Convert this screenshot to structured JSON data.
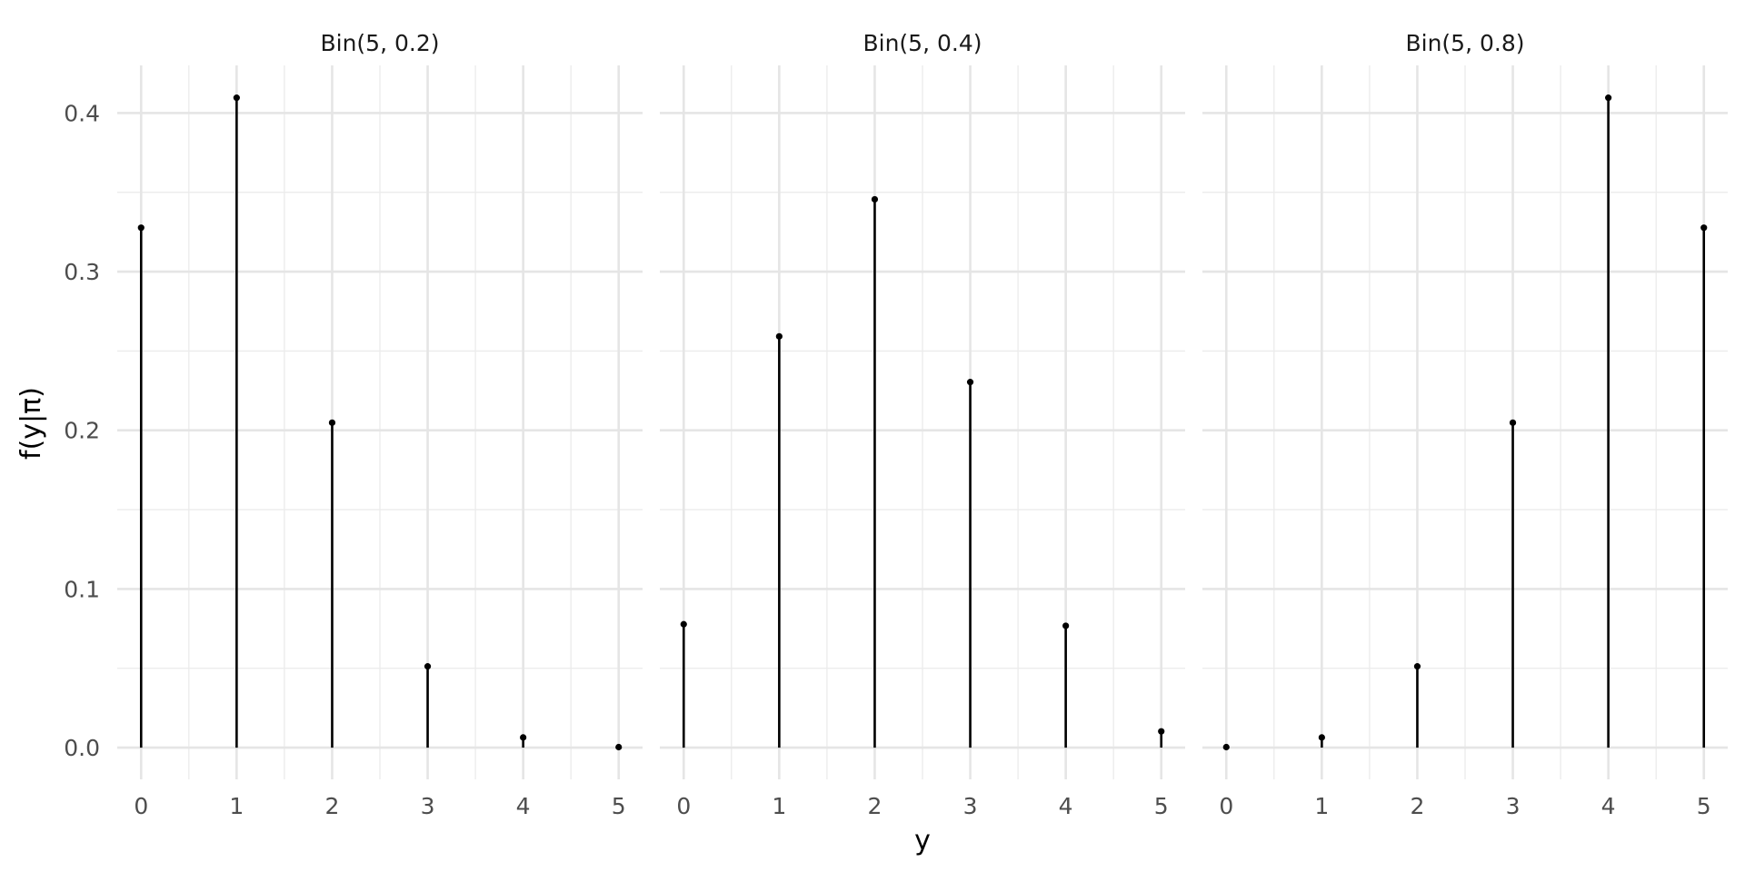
{
  "chart_data": {
    "type": "lollipop",
    "facets": [
      {
        "title": "Bin(5, 0.2)",
        "x": [
          0,
          1,
          2,
          3,
          4,
          5
        ],
        "y": [
          0.32768,
          0.4096,
          0.2048,
          0.0512,
          0.0064,
          0.00032
        ]
      },
      {
        "title": "Bin(5, 0.4)",
        "x": [
          0,
          1,
          2,
          3,
          4,
          5
        ],
        "y": [
          0.07776,
          0.2592,
          0.3456,
          0.2304,
          0.0768,
          0.01024
        ]
      },
      {
        "title": "Bin(5, 0.8)",
        "x": [
          0,
          1,
          2,
          3,
          4,
          5
        ],
        "y": [
          0.00032,
          0.0064,
          0.0512,
          0.2048,
          0.4096,
          0.32768
        ]
      }
    ],
    "xlabel": "y",
    "ylabel": "f(y|π)",
    "x_ticks": [
      "0",
      "1",
      "2",
      "3",
      "4",
      "5"
    ],
    "y_ticks": [
      "0.0",
      "0.1",
      "0.2",
      "0.3",
      "0.4"
    ],
    "ylim": [
      -0.02,
      0.43
    ],
    "xlim": [
      -0.25,
      5.25
    ],
    "grid": true,
    "colors": {
      "stem": "#000000",
      "grid": "#e5e5e5",
      "text": "#4d4d4d"
    }
  }
}
